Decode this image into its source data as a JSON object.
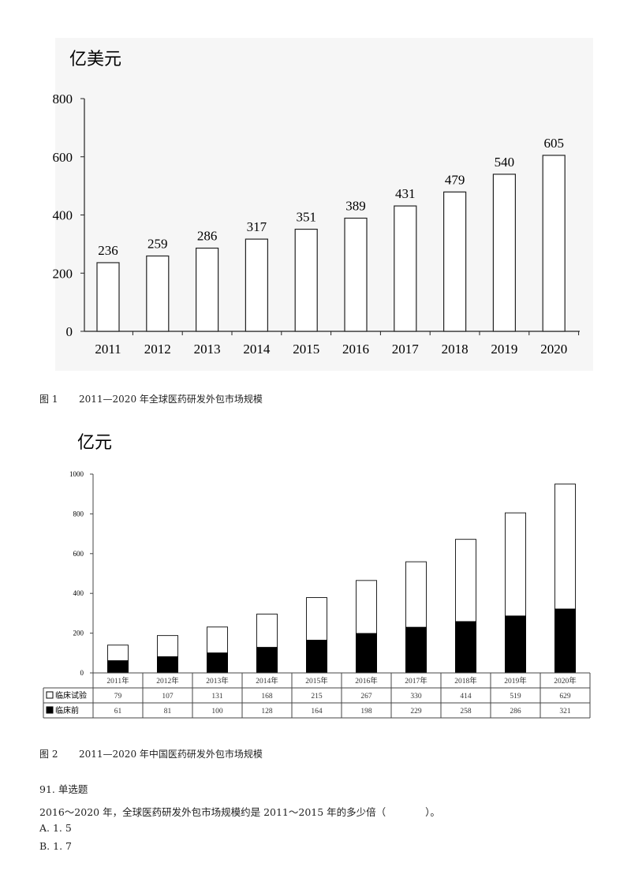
{
  "figure1": {
    "caption_label": "图 1",
    "caption_text": "2011—2020 年全球医药研发外包市场规模"
  },
  "figure2": {
    "caption_label": "图 2",
    "caption_text": "2011—2020 年中国医药研发外包市场规模"
  },
  "chart_data": [
    {
      "type": "bar",
      "unit_label": "亿美元",
      "categories": [
        "2011",
        "2012",
        "2013",
        "2014",
        "2015",
        "2016",
        "2017",
        "2018",
        "2019",
        "2020"
      ],
      "values": [
        236,
        259,
        286,
        317,
        351,
        389,
        431,
        479,
        540,
        605
      ],
      "ylim": [
        0,
        800
      ],
      "yticks": [
        0,
        200,
        400,
        600,
        800
      ],
      "data_labels": true,
      "grid": false
    },
    {
      "type": "bar",
      "stacked": true,
      "unit_label": "亿元",
      "categories": [
        "2011年",
        "2012年",
        "2013年",
        "2014年",
        "2015年",
        "2016年",
        "2017年",
        "2018年",
        "2019年",
        "2020年"
      ],
      "series": [
        {
          "name": "临床前",
          "values": [
            61,
            81,
            100,
            128,
            164,
            198,
            229,
            258,
            286,
            321
          ],
          "color": "#000000"
        },
        {
          "name": "临床试验",
          "values": [
            79,
            107,
            131,
            168,
            215,
            267,
            330,
            414,
            519,
            629
          ],
          "color": "#ffffff"
        }
      ],
      "ylim": [
        0,
        1000
      ],
      "yticks": [
        0,
        200,
        400,
        600,
        800,
        1000
      ],
      "data_table": true,
      "grid": false
    }
  ],
  "question": {
    "number_type": "91. 单选题",
    "stem": "2016～2020 年，全球医药研发外包市场规模约是 2011～2015 年的多少倍（　　　　）。",
    "options": [
      "A. 1. 5",
      "B. 1. 7"
    ]
  }
}
